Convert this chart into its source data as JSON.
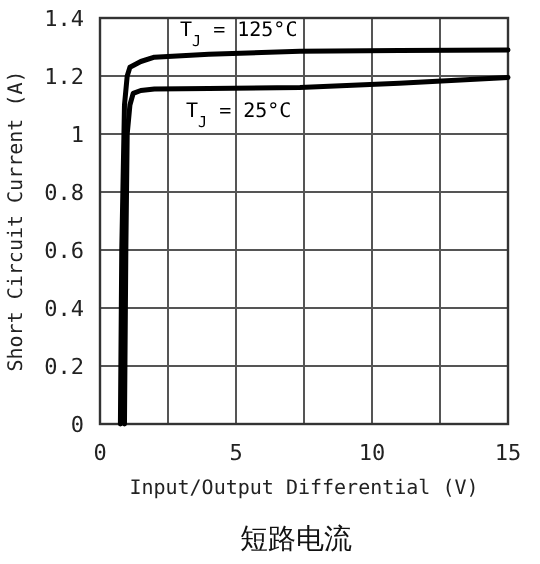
{
  "chart_data": {
    "type": "line",
    "title": "短路电流",
    "xlabel": "Input/Output Differential (V)",
    "ylabel": "Short Circuit Current (A)",
    "xlim": [
      0,
      15
    ],
    "ylim": [
      0,
      1.4
    ],
    "xticks": [
      0,
      {
        "value": 2.5,
        "label": null
      },
      5,
      {
        "value": 7.5,
        "label": null
      },
      10,
      {
        "value": 12.5,
        "label": null
      },
      15
    ],
    "yticks": [
      0,
      0.2,
      0.4,
      0.6,
      0.8,
      1,
      1.2,
      1.4
    ],
    "grid": true,
    "series": [
      {
        "name": "T$_{J}$ = 125°C",
        "color": "#000000",
        "x": [
          0.75,
          0.8,
          0.9,
          1.0,
          1.1,
          1.5,
          2.0,
          4.0,
          7.35,
          11,
          15
        ],
        "values": [
          0,
          0.6,
          1.1,
          1.2,
          1.23,
          1.25,
          1.265,
          1.275,
          1.285,
          1.288,
          1.29
        ]
      },
      {
        "name": "T$_{J}$ = 25°C",
        "color": "#000000",
        "x": [
          0.9,
          0.95,
          1.0,
          1.1,
          1.22,
          1.5,
          2.0,
          4.0,
          7.35,
          11,
          15
        ],
        "values": [
          0,
          0.6,
          1.0,
          1.1,
          1.14,
          1.15,
          1.155,
          1.157,
          1.16,
          1.175,
          1.195
        ]
      }
    ]
  }
}
